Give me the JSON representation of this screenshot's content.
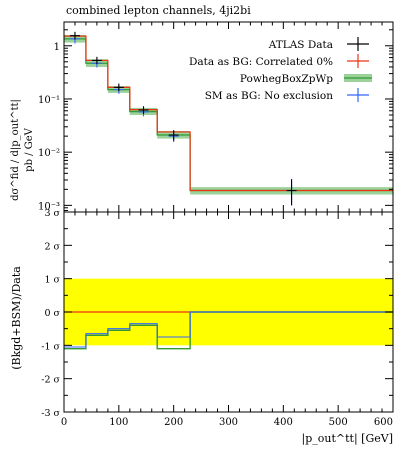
{
  "chart_data": [
    {
      "type": "line",
      "panel": "main",
      "title": "combined lepton channels, 4ji2bi",
      "ylabel_main": "dσ^fid / d|p_out^tt|",
      "ylabel_unit": "pb / GeV",
      "yscale": "log",
      "ylim": [
        0.00075,
        2.8
      ],
      "y_ticks": [
        0.001,
        0.01,
        0.1,
        1
      ],
      "y_tick_labels": [
        "10⁻³",
        "10⁻²",
        "10⁻¹",
        "1"
      ],
      "xlim": [
        0,
        600
      ],
      "bin_edges": [
        0,
        40,
        80,
        120,
        170,
        230,
        600
      ],
      "legend_position": "top-right",
      "series": [
        {
          "name": "ATLAS Data",
          "color": "#000000",
          "style": "points",
          "x": [
            20,
            60,
            100,
            145,
            200,
            415
          ],
          "y": [
            1.55,
            0.53,
            0.165,
            0.062,
            0.021,
            0.0019
          ],
          "yerr_up": [
            0.28,
            0.09,
            0.03,
            0.011,
            0.005,
            0.0012
          ],
          "yerr_down": [
            0.24,
            0.08,
            0.025,
            0.01,
            0.0045,
            0.0009
          ]
        },
        {
          "name": "Data as BG: Correlated 0%",
          "color": "#ee3311",
          "style": "step",
          "values": [
            1.52,
            0.53,
            0.165,
            0.063,
            0.024,
            0.0019
          ]
        },
        {
          "name": "PowhegBoxZpWp",
          "color": "#339933",
          "band_color": "#9ad29a",
          "style": "step+band",
          "values": [
            1.35,
            0.47,
            0.15,
            0.058,
            0.021,
            0.0019
          ],
          "band_low": [
            1.15,
            0.4,
            0.13,
            0.05,
            0.018,
            0.0016
          ],
          "band_high": [
            1.6,
            0.56,
            0.175,
            0.068,
            0.025,
            0.0022
          ]
        },
        {
          "name": "SM as BG: No exclusion",
          "color": "#3366ff",
          "style": "points",
          "x": [
            20,
            60,
            100,
            145,
            200,
            415
          ],
          "y": [
            1.35,
            0.47,
            0.15,
            0.057,
            0.02,
            0.0019
          ],
          "yerr_up": [
            0.3,
            0.1,
            0.03,
            0.012,
            0.005,
            0.0012
          ],
          "yerr_down": [
            0.25,
            0.08,
            0.025,
            0.01,
            0.0045,
            0.0009
          ]
        }
      ]
    },
    {
      "type": "line",
      "panel": "ratio",
      "xlabel": "|p_out^tt| [GeV]",
      "ylabel": "(Bkgd+BSM)/Data",
      "ylim": [
        -3,
        3
      ],
      "y_ticks": [
        -3,
        -2,
        -1,
        0,
        1,
        2,
        3
      ],
      "y_tick_labels": [
        "-3 σ",
        "-2 σ",
        "-1 σ",
        "0 σ",
        "1 σ",
        "2 σ",
        "3 σ"
      ],
      "x_ticks": [
        0,
        100,
        200,
        300,
        400,
        500,
        600
      ],
      "x_tick_labels": [
        "0",
        "100",
        "200",
        "300",
        "400",
        "500",
        "600"
      ],
      "band": {
        "low": -1,
        "high": 1,
        "color": "#ffff00"
      },
      "bin_edges": [
        0,
        40,
        80,
        120,
        170,
        230,
        600
      ],
      "series": [
        {
          "name": "Data as BG: Correlated 0%",
          "color": "#ee3311",
          "values": [
            0,
            0,
            0,
            0,
            0,
            0
          ]
        },
        {
          "name": "PowhegBoxZpWp",
          "color": "#339933",
          "values": [
            -1.1,
            -0.7,
            -0.55,
            -0.4,
            -1.1,
            0
          ]
        },
        {
          "name": "SM as BG: No exclusion",
          "color": "#3366ff",
          "values": [
            -1.05,
            -0.65,
            -0.5,
            -0.35,
            -0.75,
            0
          ]
        }
      ]
    }
  ]
}
